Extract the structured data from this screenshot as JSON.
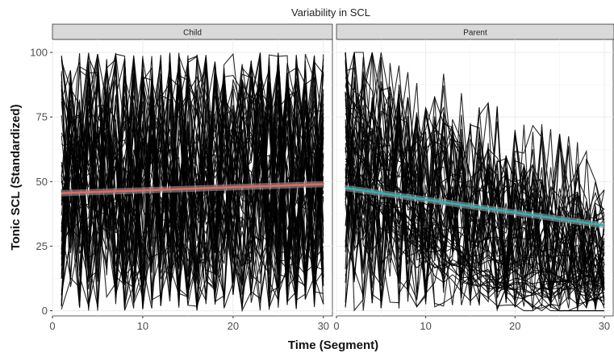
{
  "chart_data": {
    "type": "line",
    "title": "Variability in SCL",
    "xlabel": "Time (Segment)",
    "ylabel": "Tonic SCL (Standardized)",
    "xlim": [
      0,
      31
    ],
    "ylim": [
      -2,
      105
    ],
    "x_ticks": [
      0,
      10,
      20,
      30
    ],
    "y_ticks": [
      0,
      25,
      50,
      75,
      100
    ],
    "grid": true,
    "panels": [
      {
        "strip_label": "Child",
        "individual_lines": {
          "count": 60,
          "x_range": [
            1,
            30
          ],
          "y_range": [
            0,
            100
          ],
          "color": "#000000"
        },
        "trend": {
          "x": [
            1,
            30
          ],
          "y": [
            45.5,
            49.0
          ],
          "color": "#e8665f"
        }
      },
      {
        "strip_label": "Parent",
        "individual_lines": {
          "count": 60,
          "x_range": [
            1,
            30
          ],
          "y_range": [
            0,
            100
          ],
          "color": "#000000"
        },
        "trend": {
          "x": [
            1,
            30
          ],
          "y": [
            47.5,
            33.0
          ],
          "color": "#29b4b8"
        }
      }
    ]
  }
}
